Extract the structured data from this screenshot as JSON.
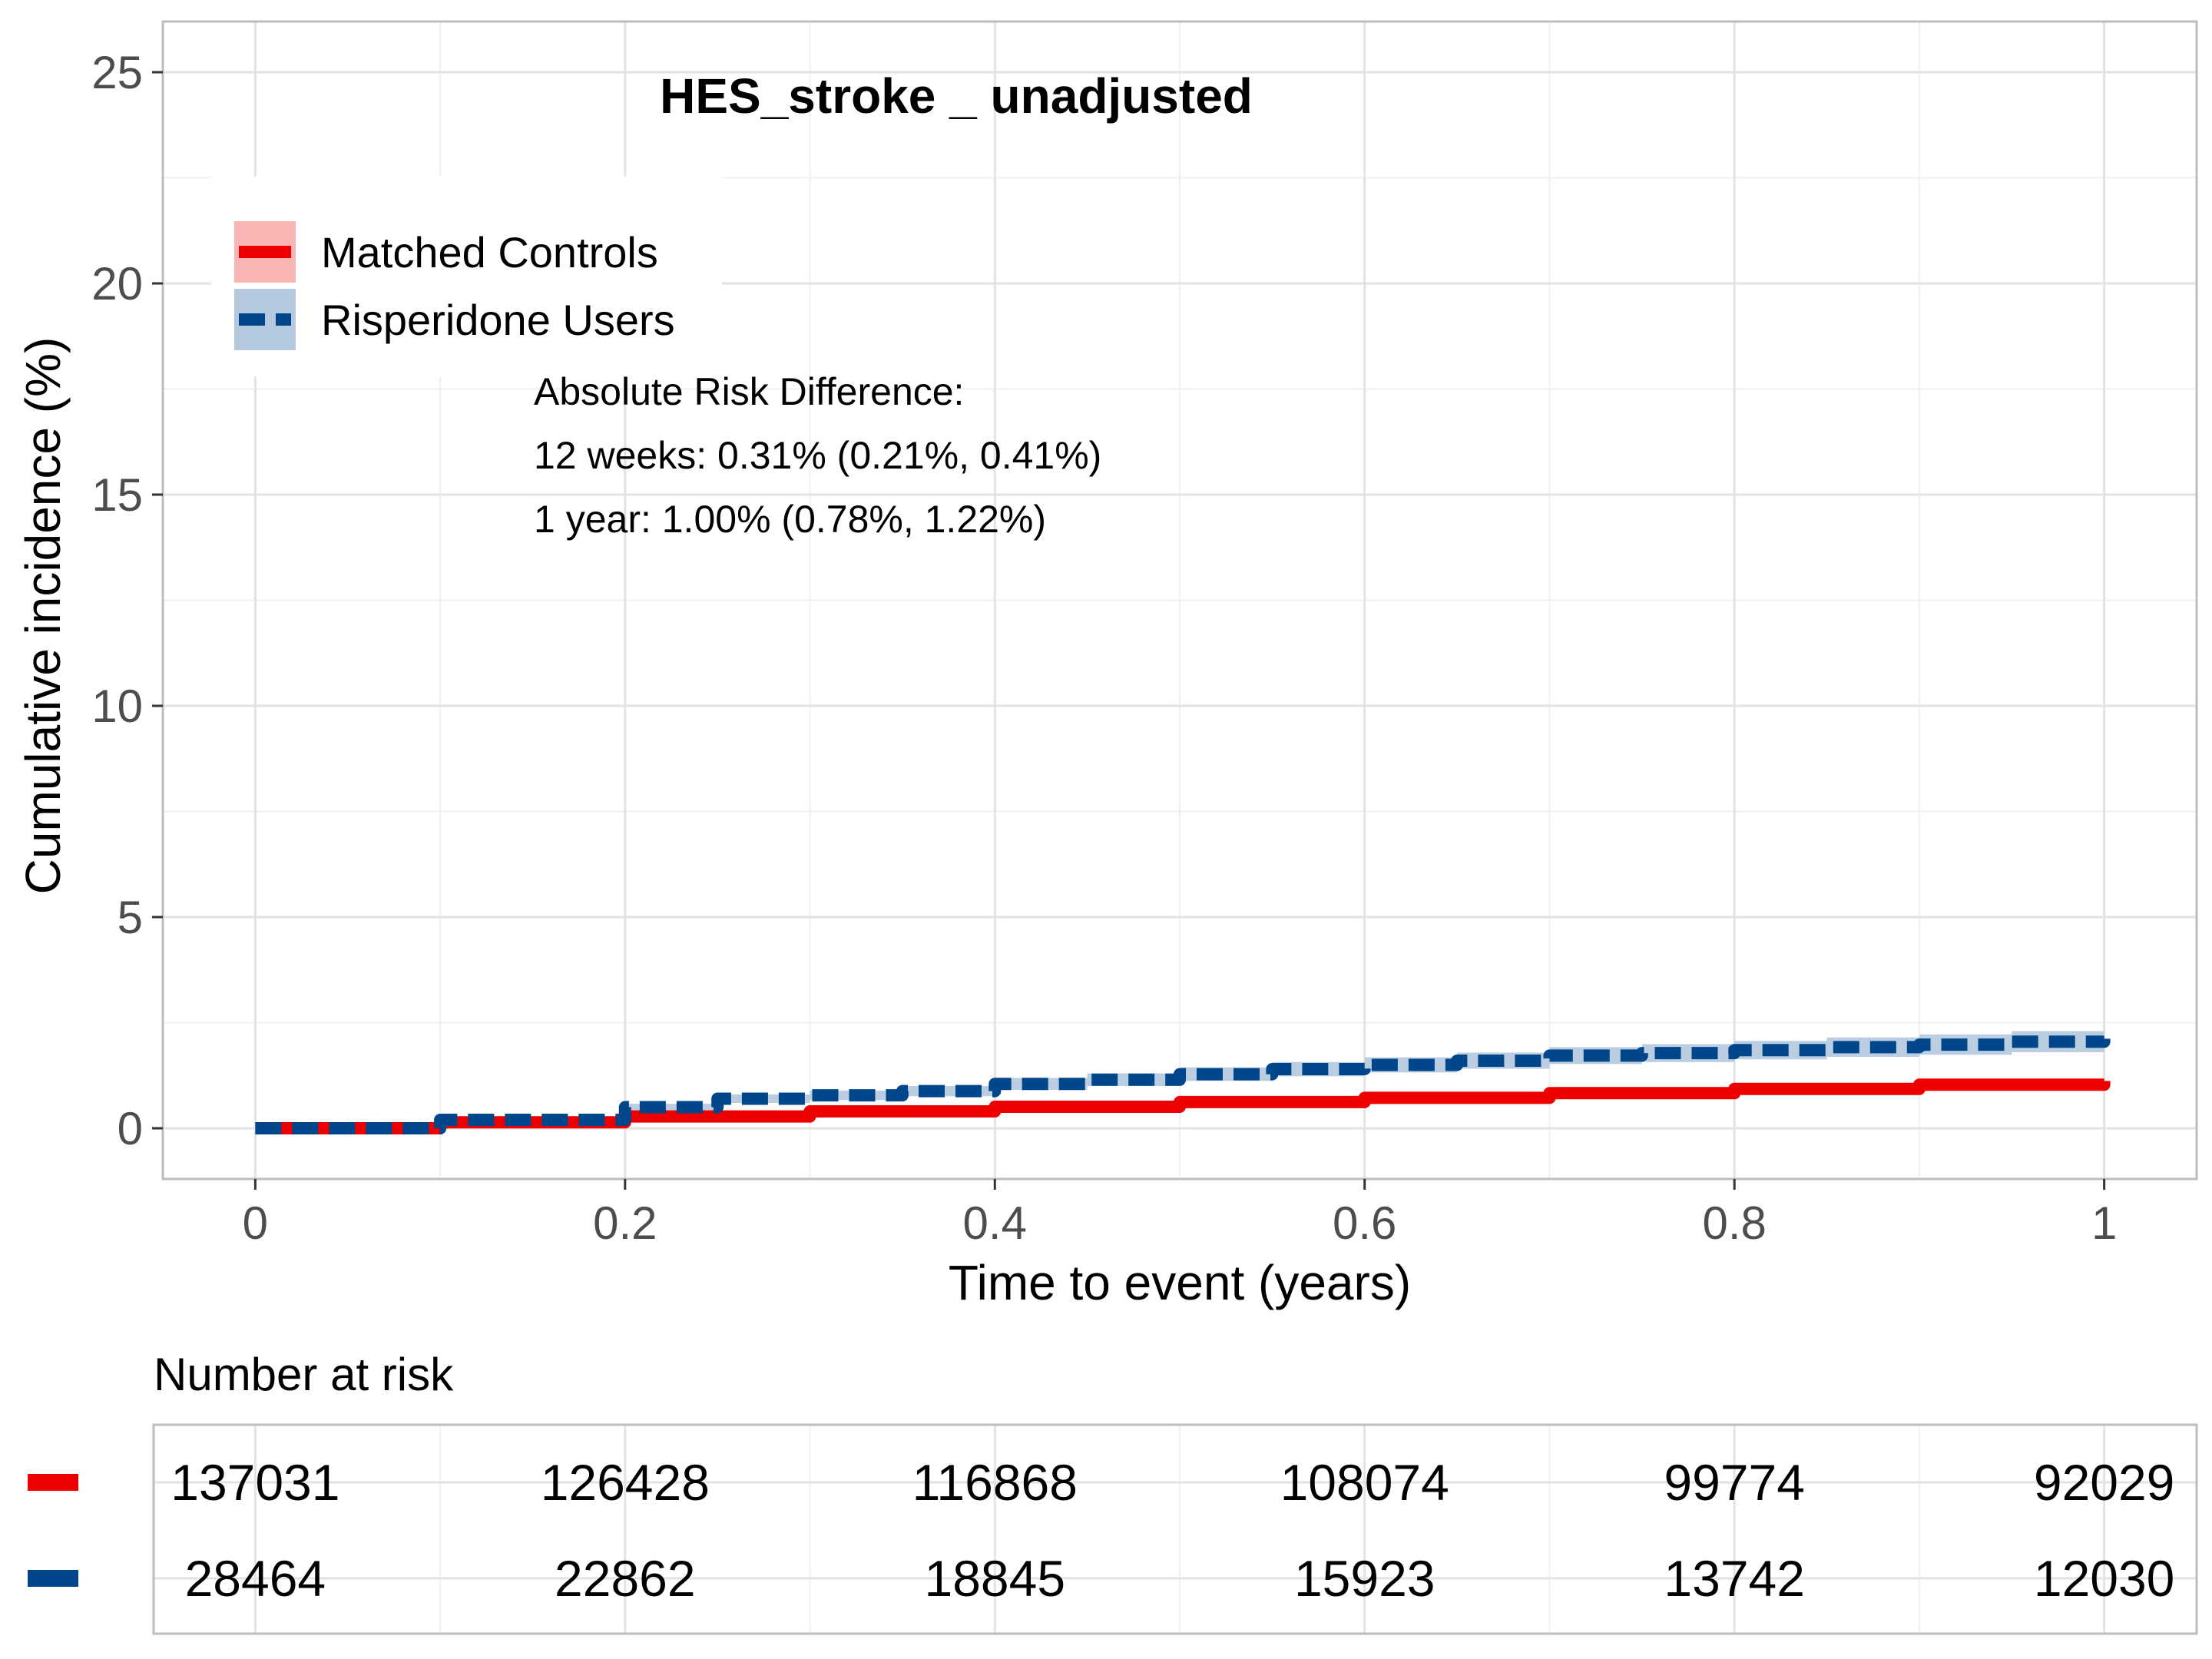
{
  "chart_data": {
    "type": "line",
    "title": "HES_stroke _ unadjusted",
    "xlabel": "Time to event (years)",
    "ylabel": "Cumulative incidence (%)",
    "xlim": [
      -0.05,
      1.05
    ],
    "ylim": [
      -1.2,
      26.2
    ],
    "x_ticks": [
      0,
      0.2,
      0.4,
      0.6,
      0.8,
      1
    ],
    "x_tick_labels": [
      "0",
      "0.2",
      "0.4",
      "0.6",
      "0.8",
      "1"
    ],
    "y_ticks": [
      0,
      5,
      10,
      15,
      20,
      25
    ],
    "y_tick_labels": [
      "0",
      "5",
      "10",
      "15",
      "20",
      "25"
    ],
    "grid": true,
    "legend_position": "top-left",
    "series": [
      {
        "name": "Matched Controls",
        "color": "#ee0000",
        "band_color": "#fbb4b4",
        "line_style": "solid",
        "x": [
          0,
          0.1,
          0.2,
          0.3,
          0.4,
          0.5,
          0.6,
          0.7,
          0.8,
          0.9,
          1.0
        ],
        "y": [
          0,
          0.14,
          0.28,
          0.4,
          0.51,
          0.62,
          0.72,
          0.83,
          0.93,
          1.03,
          1.12
        ],
        "lower": [
          0,
          0.12,
          0.25,
          0.36,
          0.47,
          0.58,
          0.67,
          0.78,
          0.87,
          0.96,
          1.04
        ],
        "upper": [
          0,
          0.16,
          0.31,
          0.44,
          0.56,
          0.67,
          0.78,
          0.89,
          0.99,
          1.1,
          1.2
        ]
      },
      {
        "name": "Risperidone Users",
        "color": "#00468b",
        "band_color": "#b4c8de",
        "line_style": "dashed",
        "x": [
          0,
          0.1,
          0.2,
          0.25,
          0.3,
          0.35,
          0.4,
          0.45,
          0.5,
          0.55,
          0.6,
          0.65,
          0.7,
          0.75,
          0.8,
          0.85,
          0.9,
          0.95,
          1.0
        ],
        "y": [
          0,
          0.2,
          0.5,
          0.7,
          0.78,
          0.88,
          1.05,
          1.15,
          1.28,
          1.4,
          1.5,
          1.6,
          1.72,
          1.78,
          1.85,
          1.92,
          1.98,
          2.05,
          2.12
        ],
        "lower": [
          0,
          0.15,
          0.42,
          0.6,
          0.67,
          0.76,
          0.91,
          1.0,
          1.12,
          1.23,
          1.32,
          1.41,
          1.52,
          1.57,
          1.63,
          1.69,
          1.74,
          1.8,
          1.86
        ],
        "upper": [
          0,
          0.25,
          0.58,
          0.8,
          0.89,
          1.0,
          1.19,
          1.3,
          1.44,
          1.57,
          1.68,
          1.79,
          1.92,
          1.99,
          2.07,
          2.15,
          2.22,
          2.3,
          2.38
        ]
      }
    ],
    "annotations": [
      "Absolute Risk Difference:",
      "12 weeks: 0.31% (0.21%, 0.41%)",
      "1 year: 1.00% (0.78%, 1.22%)"
    ],
    "risk_table": {
      "title": "Number at risk",
      "rows": [
        {
          "name": "Matched Controls",
          "color": "#ee0000",
          "values": [
            "137031",
            "126428",
            "116868",
            "108074",
            "99774",
            "92029"
          ]
        },
        {
          "name": "Risperidone Users",
          "color": "#00468b",
          "values": [
            "28464",
            "22862",
            "18845",
            "15923",
            "13742",
            "12030"
          ]
        }
      ]
    }
  }
}
